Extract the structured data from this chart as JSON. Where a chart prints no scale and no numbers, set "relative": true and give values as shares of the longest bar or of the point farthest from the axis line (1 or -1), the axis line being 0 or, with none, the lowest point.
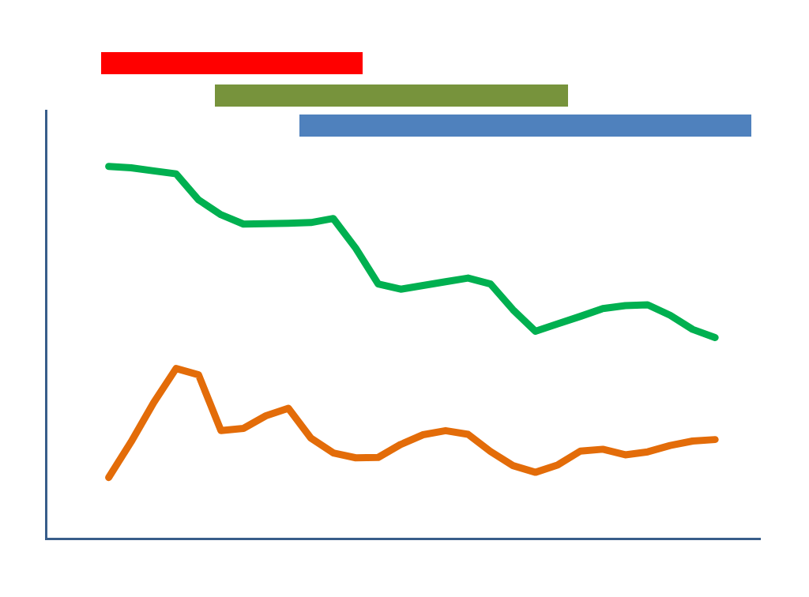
{
  "chart_data": {
    "type": "line",
    "relative": true,
    "grid": false,
    "legend": false,
    "marker": "none",
    "line_style": "solid",
    "categories": [
      null,
      null,
      null,
      null,
      null,
      null,
      null,
      null,
      null,
      null,
      null,
      null,
      null,
      null,
      null,
      null,
      null,
      null,
      null,
      null,
      null,
      null,
      null,
      null,
      null,
      null,
      null,
      null
    ],
    "series": [
      {
        "color": "#00b050",
        "values": [
          1,
          0.996,
          0.988,
          0.98,
          0.91,
          0.87,
          0.845,
          0.846,
          0.847,
          0.849,
          0.86,
          0.78,
          0.684,
          0.67,
          0.68,
          0.69,
          0.7,
          0.684,
          0.615,
          0.557,
          0.577,
          0.597,
          0.618,
          0.626,
          0.628,
          0.6,
          0.562,
          0.54
        ]
      },
      {
        "color": "#e36c09",
        "values": [
          0.164,
          0.26,
          0.365,
          0.457,
          0.44,
          0.29,
          0.296,
          0.33,
          0.35,
          0.27,
          0.23,
          0.217,
          0.218,
          0.253,
          0.279,
          0.29,
          0.28,
          0.234,
          0.196,
          0.178,
          0.198,
          0.235,
          0.24,
          0.225,
          0.233,
          0.25,
          0.262,
          0.266
        ]
      }
    ]
  }
}
